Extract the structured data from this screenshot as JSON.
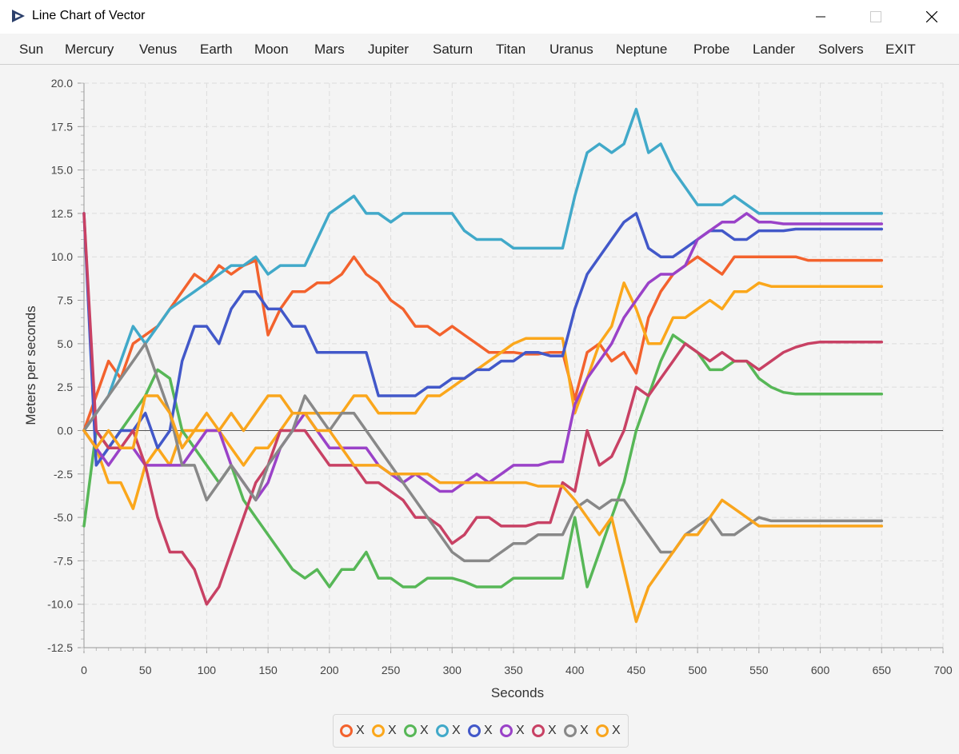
{
  "window": {
    "title": "Line Chart of Vector"
  },
  "menu": [
    "Sun",
    "Mercury",
    "Venus",
    "Earth",
    "Moon",
    "Mars",
    "Jupiter",
    "Saturn",
    "Titan",
    "Uranus",
    "Neptune",
    "Probe",
    "Lander",
    "Solvers",
    "EXIT"
  ],
  "chart_data": {
    "type": "line",
    "xlabel": "Seconds",
    "ylabel": "Meters per seconds",
    "xlim": [
      0,
      700
    ],
    "ylim": [
      -12.5,
      20.0
    ],
    "xticks": [
      "0",
      "50",
      "100",
      "150",
      "200",
      "250",
      "300",
      "350",
      "400",
      "450",
      "500",
      "550",
      "600",
      "650",
      "700"
    ],
    "yticks": [
      "20.0",
      "17.5",
      "15.0",
      "12.5",
      "10.0",
      "7.5",
      "5.0",
      "2.5",
      "0.0",
      "-2.5",
      "-5.0",
      "-7.5",
      "-10.0",
      "-12.5"
    ],
    "grid": true,
    "legend_position": "bottom",
    "series": [
      {
        "name": "X",
        "color": "#f3622d",
        "x": [
          0,
          10,
          20,
          30,
          40,
          50,
          60,
          70,
          80,
          90,
          100,
          110,
          120,
          130,
          140,
          150,
          160,
          170,
          180,
          190,
          200,
          210,
          220,
          230,
          240,
          250,
          260,
          270,
          280,
          290,
          300,
          310,
          320,
          330,
          340,
          350,
          360,
          370,
          380,
          390,
          400,
          410,
          420,
          430,
          440,
          450,
          460,
          470,
          480,
          490,
          500,
          510,
          520,
          530,
          540,
          550,
          560,
          570,
          580,
          590,
          600,
          610,
          620,
          630,
          640,
          650
        ],
        "y": [
          0,
          2,
          4,
          3,
          5,
          5.5,
          6,
          7,
          8,
          9,
          8.5,
          9.5,
          9,
          9.5,
          9.8,
          5.5,
          7,
          8,
          8,
          8.5,
          8.5,
          9,
          10,
          9,
          8.5,
          7.5,
          7,
          6,
          6,
          5.5,
          6,
          5.5,
          5,
          4.5,
          4.5,
          4.5,
          4.4,
          4.4,
          4.5,
          4.5,
          1.8,
          4.5,
          5,
          4,
          4.5,
          3.3,
          6.5,
          8,
          9,
          9.5,
          10,
          9.5,
          9,
          10,
          10,
          10,
          10,
          10,
          10,
          9.8,
          9.8,
          9.8,
          9.8,
          9.8,
          9.8,
          9.8
        ]
      },
      {
        "name": "X",
        "color": "#fba71b",
        "x": [
          0,
          10,
          20,
          30,
          40,
          50,
          60,
          70,
          80,
          90,
          100,
          110,
          120,
          130,
          140,
          150,
          160,
          170,
          180,
          190,
          200,
          210,
          220,
          230,
          240,
          250,
          260,
          270,
          280,
          290,
          300,
          310,
          320,
          330,
          340,
          350,
          360,
          370,
          380,
          390,
          400,
          410,
          420,
          430,
          440,
          450,
          460,
          470,
          480,
          490,
          500,
          510,
          520,
          530,
          540,
          550,
          560,
          570,
          580,
          590,
          600,
          610,
          620,
          630,
          640,
          650
        ],
        "y": [
          0,
          -1,
          -3,
          -3,
          -4.5,
          -2,
          -1,
          -2,
          0,
          0,
          0,
          0,
          -1,
          -2,
          -1,
          -1,
          0,
          1,
          1,
          1,
          1,
          1,
          2,
          2,
          1,
          1,
          1,
          1,
          2,
          2,
          2.5,
          3,
          3.5,
          4,
          4.5,
          5,
          5.3,
          5.3,
          5.3,
          5.3,
          1,
          3,
          5,
          6,
          8.5,
          7,
          5,
          5,
          6.5,
          6.5,
          7,
          7.5,
          7,
          8,
          8,
          8.5,
          8.3,
          8.3,
          8.3,
          8.3,
          8.3,
          8.3,
          8.3,
          8.3,
          8.3,
          8.3
        ]
      },
      {
        "name": "X",
        "color": "#57b757",
        "x": [
          0,
          10,
          20,
          30,
          40,
          50,
          60,
          70,
          80,
          90,
          100,
          110,
          120,
          130,
          140,
          150,
          160,
          170,
          180,
          190,
          200,
          210,
          220,
          230,
          240,
          250,
          260,
          270,
          280,
          290,
          300,
          310,
          320,
          330,
          340,
          350,
          360,
          370,
          380,
          390,
          400,
          410,
          420,
          430,
          440,
          450,
          460,
          470,
          480,
          490,
          500,
          510,
          520,
          530,
          540,
          550,
          560,
          570,
          580,
          590,
          600,
          610,
          620,
          630,
          640,
          650
        ],
        "y": [
          -5.5,
          0,
          -1,
          0,
          1,
          2,
          3.5,
          3,
          0,
          -1,
          -2,
          -3,
          -2,
          -4,
          -5,
          -6,
          -7,
          -8,
          -8.5,
          -8,
          -9,
          -8,
          -8,
          -7,
          -8.5,
          -8.5,
          -9,
          -9,
          -8.5,
          -8.5,
          -8.5,
          -8.7,
          -9,
          -9,
          -9,
          -8.5,
          -8.5,
          -8.5,
          -8.5,
          -8.5,
          -5,
          -9,
          -7,
          -5,
          -3,
          0,
          2,
          4,
          5.5,
          5,
          4.5,
          3.5,
          3.5,
          4,
          4,
          3,
          2.5,
          2.2,
          2.1,
          2.1,
          2.1,
          2.1,
          2.1,
          2.1,
          2.1,
          2.1
        ]
      },
      {
        "name": "X",
        "color": "#41a9c9",
        "x": [
          0,
          10,
          20,
          30,
          40,
          50,
          60,
          70,
          80,
          90,
          100,
          110,
          120,
          130,
          140,
          150,
          160,
          170,
          180,
          190,
          200,
          210,
          220,
          230,
          240,
          250,
          260,
          270,
          280,
          290,
          300,
          310,
          320,
          330,
          340,
          350,
          360,
          370,
          380,
          390,
          400,
          410,
          420,
          430,
          440,
          450,
          460,
          470,
          480,
          490,
          500,
          510,
          520,
          530,
          540,
          550,
          560,
          570,
          580,
          590,
          600,
          610,
          620,
          630,
          640,
          650
        ],
        "y": [
          0,
          1,
          2,
          4,
          6,
          5,
          6,
          7,
          7.5,
          8,
          8.5,
          9,
          9.5,
          9.5,
          10,
          9,
          9.5,
          9.5,
          9.5,
          11,
          12.5,
          13,
          13.5,
          12.5,
          12.5,
          12,
          12.5,
          12.5,
          12.5,
          12.5,
          12.5,
          11.5,
          11,
          11,
          11,
          10.5,
          10.5,
          10.5,
          10.5,
          10.5,
          13.5,
          16,
          16.5,
          16,
          16.5,
          18.5,
          16,
          16.5,
          15,
          14,
          13,
          13,
          13,
          13.5,
          13,
          12.5,
          12.5,
          12.5,
          12.5,
          12.5,
          12.5,
          12.5,
          12.5,
          12.5,
          12.5,
          12.5
        ]
      },
      {
        "name": "X",
        "color": "#4258c9",
        "x": [
          0,
          10,
          20,
          30,
          40,
          50,
          60,
          70,
          80,
          90,
          100,
          110,
          120,
          130,
          140,
          150,
          160,
          170,
          180,
          190,
          200,
          210,
          220,
          230,
          240,
          250,
          260,
          270,
          280,
          290,
          300,
          310,
          320,
          330,
          340,
          350,
          360,
          370,
          380,
          390,
          400,
          410,
          420,
          430,
          440,
          450,
          460,
          470,
          480,
          490,
          500,
          510,
          520,
          530,
          540,
          550,
          560,
          570,
          580,
          590,
          600,
          610,
          620,
          630,
          640,
          650
        ],
        "y": [
          12.5,
          -2,
          -1,
          0,
          0,
          1,
          -1,
          0,
          4,
          6,
          6,
          5,
          7,
          8,
          8,
          7,
          7,
          6,
          6,
          4.5,
          4.5,
          4.5,
          4.5,
          4.5,
          2,
          2,
          2,
          2,
          2.5,
          2.5,
          3,
          3,
          3.5,
          3.5,
          4,
          4,
          4.5,
          4.5,
          4.3,
          4.3,
          7,
          9,
          10,
          11,
          12,
          12.5,
          10.5,
          10,
          10,
          10.5,
          11,
          11.5,
          11.5,
          11,
          11,
          11.5,
          11.5,
          11.5,
          11.6,
          11.6,
          11.6,
          11.6,
          11.6,
          11.6,
          11.6,
          11.6
        ]
      },
      {
        "name": "X",
        "color": "#9a42c8",
        "x": [
          0,
          10,
          20,
          30,
          40,
          50,
          60,
          70,
          80,
          90,
          100,
          110,
          120,
          130,
          140,
          150,
          160,
          170,
          180,
          190,
          200,
          210,
          220,
          230,
          240,
          250,
          260,
          270,
          280,
          290,
          300,
          310,
          320,
          330,
          340,
          350,
          360,
          370,
          380,
          390,
          400,
          410,
          420,
          430,
          440,
          450,
          460,
          470,
          480,
          490,
          500,
          510,
          520,
          530,
          540,
          550,
          560,
          570,
          580,
          590,
          600,
          610,
          620,
          630,
          640,
          650
        ],
        "y": [
          0,
          -1,
          -2,
          -1,
          -1,
          -2,
          -2,
          -2,
          -2,
          -1,
          0,
          0,
          -2,
          -3,
          -4,
          -3,
          -1,
          0,
          1,
          0,
          -1,
          -1,
          -1,
          -1,
          -2,
          -2.5,
          -3,
          -2.5,
          -3,
          -3.5,
          -3.5,
          -3,
          -2.5,
          -3,
          -2.5,
          -2,
          -2,
          -2,
          -1.8,
          -1.8,
          1.5,
          3,
          4,
          5,
          6.5,
          7.5,
          8.5,
          9,
          9,
          9.5,
          11,
          11.5,
          12,
          12,
          12.5,
          12,
          12,
          11.9,
          11.9,
          11.9,
          11.9,
          11.9,
          11.9,
          11.9,
          11.9,
          11.9
        ]
      },
      {
        "name": "X",
        "color": "#c84164",
        "x": [
          0,
          10,
          20,
          30,
          40,
          50,
          60,
          70,
          80,
          90,
          100,
          110,
          120,
          130,
          140,
          150,
          160,
          170,
          180,
          190,
          200,
          210,
          220,
          230,
          240,
          250,
          260,
          270,
          280,
          290,
          300,
          310,
          320,
          330,
          340,
          350,
          360,
          370,
          380,
          390,
          400,
          410,
          420,
          430,
          440,
          450,
          460,
          470,
          480,
          490,
          500,
          510,
          520,
          530,
          540,
          550,
          560,
          570,
          580,
          590,
          600,
          610,
          620,
          630,
          640,
          650
        ],
        "y": [
          12.5,
          0,
          -1,
          -1,
          0,
          -2,
          -5,
          -7,
          -7,
          -8,
          -10,
          -9,
          -7,
          -5,
          -3,
          -2,
          0,
          0,
          0,
          -1,
          -2,
          -2,
          -2,
          -3,
          -3,
          -3.5,
          -4,
          -5,
          -5,
          -5.5,
          -6.5,
          -6,
          -5,
          -5,
          -5.5,
          -5.5,
          -5.5,
          -5.3,
          -5.3,
          -3,
          -3.5,
          0,
          -2,
          -1.5,
          0,
          2.5,
          2,
          3,
          4,
          5,
          4.5,
          4,
          4.5,
          4,
          4,
          3.5,
          4,
          4.5,
          4.8,
          5,
          5.1,
          5.1,
          5.1,
          5.1,
          5.1,
          5.1
        ]
      },
      {
        "name": "X",
        "color": "#888888",
        "x": [
          0,
          10,
          20,
          30,
          40,
          50,
          60,
          70,
          80,
          90,
          100,
          110,
          120,
          130,
          140,
          150,
          160,
          170,
          180,
          190,
          200,
          210,
          220,
          230,
          240,
          250,
          260,
          270,
          280,
          290,
          300,
          310,
          320,
          330,
          340,
          350,
          360,
          370,
          380,
          390,
          400,
          410,
          420,
          430,
          440,
          450,
          460,
          470,
          480,
          490,
          500,
          510,
          520,
          530,
          540,
          550,
          560,
          570,
          580,
          590,
          600,
          610,
          620,
          630,
          640,
          650
        ],
        "y": [
          0,
          1,
          2,
          3,
          4,
          5,
          3,
          1,
          -2,
          -2,
          -4,
          -3,
          -2,
          -3,
          -4,
          -2,
          -1,
          0,
          2,
          1,
          0,
          1,
          1,
          0,
          -1,
          -2,
          -3,
          -4,
          -5,
          -6,
          -7,
          -7.5,
          -7.5,
          -7.5,
          -7,
          -6.5,
          -6.5,
          -6,
          -6,
          -6,
          -4.5,
          -4,
          -4.5,
          -4,
          -4,
          -5,
          -6,
          -7,
          -7,
          -6,
          -5.5,
          -5,
          -6,
          -6,
          -5.5,
          -5,
          -5.2,
          -5.2,
          -5.2,
          -5.2,
          -5.2,
          -5.2,
          -5.2,
          -5.2,
          -5.2,
          -5.2
        ]
      },
      {
        "name": "X",
        "color": "#f9a51d",
        "x": [
          0,
          10,
          20,
          30,
          40,
          50,
          60,
          70,
          80,
          90,
          100,
          110,
          120,
          130,
          140,
          150,
          160,
          170,
          180,
          190,
          200,
          210,
          220,
          230,
          240,
          250,
          260,
          270,
          280,
          290,
          300,
          310,
          320,
          330,
          340,
          350,
          360,
          370,
          380,
          390,
          400,
          410,
          420,
          430,
          440,
          450,
          460,
          470,
          480,
          490,
          500,
          510,
          520,
          530,
          540,
          550,
          560,
          570,
          580,
          590,
          600,
          610,
          620,
          630,
          640,
          650
        ],
        "y": [
          0,
          -1,
          0,
          -1,
          -1,
          2,
          2,
          1,
          -1,
          0,
          1,
          0,
          1,
          0,
          1,
          2,
          2,
          1,
          1,
          0,
          0,
          -1,
          -2,
          -2,
          -2,
          -2.5,
          -2.5,
          -2.5,
          -2.5,
          -3,
          -3,
          -3,
          -3,
          -3,
          -3,
          -3,
          -3,
          -3.2,
          -3.2,
          -3.2,
          -4,
          -5,
          -6,
          -5,
          -8,
          -11,
          -9,
          -8,
          -7,
          -6,
          -6,
          -5,
          -4,
          -4.5,
          -5,
          -5.5,
          -5.5,
          -5.5,
          -5.5,
          -5.5,
          -5.5,
          -5.5,
          -5.5,
          -5.5,
          -5.5,
          -5.5
        ]
      }
    ]
  }
}
